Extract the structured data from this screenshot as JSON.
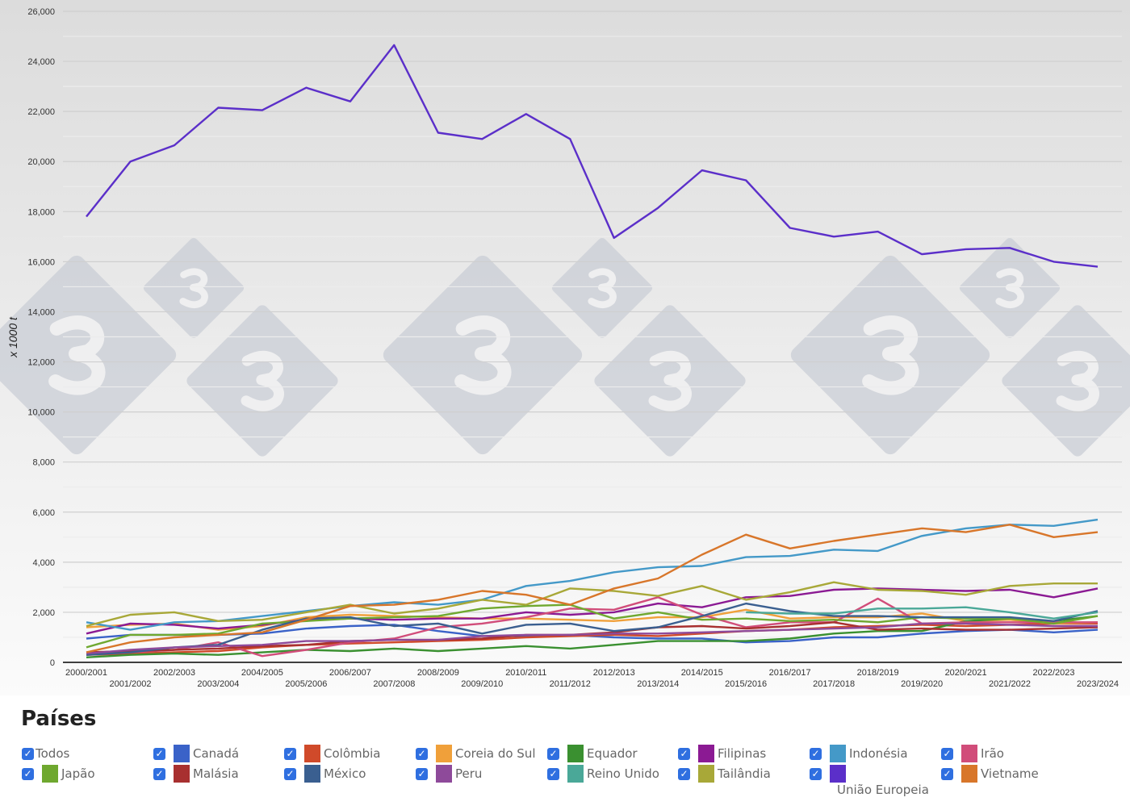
{
  "chart_data": {
    "type": "line",
    "ylabel": "x 1000 t",
    "ylim": [
      0,
      26000
    ],
    "yticks": [
      "0",
      "2,000",
      "4,000",
      "6,000",
      "8,000",
      "10,000",
      "12,000",
      "14,000",
      "16,000",
      "18,000",
      "20,000",
      "22,000",
      "24,000",
      "26,000"
    ],
    "grid": true,
    "legend_position": "bottom",
    "categories": [
      "2000/2001",
      "2001/2002",
      "2002/2003",
      "2003/2004",
      "2004/2005",
      "2005/2006",
      "2006/2007",
      "2007/2008",
      "2008/2009",
      "2009/2010",
      "2010/2011",
      "2011/2012",
      "2012/2013",
      "2013/2014",
      "2014/2015",
      "2015/2016",
      "2016/2017",
      "2017/2018",
      "2018/2019",
      "2019/2020",
      "2020/2021",
      "2021/2022",
      "2022/2023",
      "2023/2024"
    ],
    "series": [
      {
        "name": "Canadá",
        "color": "#3a62c8",
        "values": [
          950,
          1100,
          1100,
          1100,
          1150,
          1350,
          1450,
          1500,
          1250,
          1050,
          1050,
          1100,
          1000,
          950,
          950,
          800,
          850,
          1000,
          1000,
          1150,
          1250,
          1300,
          1200,
          1300
        ]
      },
      {
        "name": "Colômbia",
        "color": "#d04a2a",
        "values": [
          300,
          350,
          400,
          450,
          600,
          700,
          750,
          800,
          850,
          900,
          1000,
          1050,
          1100,
          1050,
          1150,
          1250,
          1300,
          1400,
          1450,
          1500,
          1450,
          1500,
          1550,
          1550
        ]
      },
      {
        "name": "Coreia do Sul",
        "color": "#f0a03a",
        "values": [
          1400,
          1500,
          1550,
          1300,
          1450,
          1800,
          1900,
          1850,
          1800,
          1750,
          1750,
          1700,
          1650,
          1800,
          1800,
          2100,
          1750,
          1800,
          1800,
          1950,
          1650,
          1700,
          1550,
          1600
        ]
      },
      {
        "name": "Equador",
        "color": "#3a9030",
        "values": [
          200,
          300,
          350,
          300,
          400,
          500,
          450,
          550,
          450,
          550,
          650,
          550,
          700,
          850,
          850,
          850,
          950,
          1150,
          1250,
          1250,
          1650,
          1750,
          1650,
          1850
        ]
      },
      {
        "name": "Filipinas",
        "color": "#8b1a93",
        "values": [
          1150,
          1550,
          1500,
          1350,
          1500,
          1700,
          1750,
          1700,
          1750,
          1750,
          2000,
          1900,
          2000,
          2350,
          2200,
          2600,
          2650,
          2900,
          2950,
          2900,
          2850,
          2900,
          2600,
          2950
        ]
      },
      {
        "name": "Indonésia",
        "color": "#4499c8",
        "values": [
          1600,
          1300,
          1600,
          1650,
          1850,
          2050,
          2250,
          2400,
          2300,
          2500,
          3050,
          3250,
          3600,
          3800,
          3850,
          4200,
          4250,
          4500,
          4450,
          5050,
          5350,
          5500,
          5450,
          5700
        ]
      },
      {
        "name": "Irão",
        "color": "#d14d7a",
        "values": [
          300,
          400,
          500,
          800,
          250,
          500,
          800,
          950,
          1400,
          1550,
          1800,
          2150,
          2100,
          2600,
          1900,
          1400,
          1600,
          1600,
          2550,
          1550,
          1600,
          1600,
          1600,
          1600
        ]
      },
      {
        "name": "Japão",
        "color": "#6fa82f",
        "values": [
          600,
          1100,
          1100,
          1150,
          1550,
          1650,
          1750,
          1800,
          1850,
          2150,
          2250,
          2300,
          1750,
          2000,
          1700,
          1750,
          1650,
          1700,
          1600,
          1800,
          1750,
          1750,
          1550,
          1850
        ]
      },
      {
        "name": "Malásia",
        "color": "#a83030",
        "values": [
          400,
          450,
          500,
          550,
          650,
          700,
          850,
          900,
          900,
          950,
          1100,
          1100,
          1200,
          1400,
          1450,
          1350,
          1450,
          1600,
          1300,
          1350,
          1300,
          1300,
          1350,
          1400
        ]
      },
      {
        "name": "México",
        "color": "#3a5f90",
        "values": [
          300,
          400,
          600,
          700,
          1300,
          1750,
          1800,
          1450,
          1550,
          1150,
          1500,
          1550,
          1250,
          1400,
          1850,
          2350,
          2050,
          1850,
          1850,
          1800,
          1800,
          1800,
          1650,
          2050
        ]
      },
      {
        "name": "Peru",
        "color": "#8e4a9a",
        "values": [
          350,
          500,
          600,
          650,
          700,
          850,
          850,
          900,
          900,
          1050,
          1100,
          1100,
          1150,
          1150,
          1200,
          1250,
          1300,
          1350,
          1400,
          1550,
          1550,
          1500,
          1450,
          1450
        ]
      },
      {
        "name": "Reino Unido",
        "color": "#4aa898",
        "values": [
          null,
          null,
          null,
          null,
          null,
          null,
          null,
          null,
          null,
          null,
          null,
          null,
          null,
          null,
          null,
          2000,
          1950,
          1950,
          2150,
          2150,
          2200,
          2000,
          1750,
          2000
        ]
      },
      {
        "name": "Tailândia",
        "color": "#a8a838",
        "values": [
          1450,
          1900,
          2000,
          1650,
          1700,
          2000,
          2300,
          1950,
          2150,
          2500,
          2300,
          2950,
          2850,
          2650,
          3050,
          2500,
          2800,
          3200,
          2900,
          2850,
          2700,
          3050,
          3150,
          3150
        ]
      },
      {
        "name": "União Europeia",
        "color": "#5b2fc9",
        "values": [
          17800,
          20000,
          20650,
          22150,
          22050,
          22950,
          22400,
          24650,
          21150,
          20900,
          21900,
          20900,
          16950,
          18150,
          19650,
          19250,
          17350,
          17000,
          17200,
          16300,
          16500,
          16550,
          16000,
          15800
        ]
      },
      {
        "name": "Vietname",
        "color": "#d8762a",
        "values": [
          400,
          800,
          1000,
          1100,
          1200,
          1700,
          2250,
          2300,
          2500,
          2850,
          2700,
          2300,
          2950,
          3350,
          4300,
          5100,
          4550,
          4850,
          5100,
          5350,
          5200,
          5500,
          5000,
          5200
        ]
      }
    ]
  },
  "legend": {
    "title": "Países",
    "check_glyph": "✓",
    "items": [
      {
        "label": "Todos",
        "color": null
      },
      {
        "label": "Canadá",
        "color": "#3a62c8"
      },
      {
        "label": "Colômbia",
        "color": "#d04a2a"
      },
      {
        "label": "Coreia do Sul",
        "color": "#f0a03a"
      },
      {
        "label": "Equador",
        "color": "#3a9030"
      },
      {
        "label": "Filipinas",
        "color": "#8b1a93"
      },
      {
        "label": "Indonésia",
        "color": "#4499c8"
      },
      {
        "label": "Irão",
        "color": "#d14d7a"
      },
      {
        "label": "Japão",
        "color": "#6fa82f"
      },
      {
        "label": "Malásia",
        "color": "#a83030"
      },
      {
        "label": "México",
        "color": "#3a5f90"
      },
      {
        "label": "Peru",
        "color": "#8e4a9a"
      },
      {
        "label": "Reino Unido",
        "color": "#4aa898"
      },
      {
        "label": "Tailândia",
        "color": "#a8a838"
      },
      {
        "label": "União Europeia",
        "color": "#5b2fc9"
      },
      {
        "label": "Vietname",
        "color": "#d8762a"
      }
    ]
  },
  "watermark": "3"
}
